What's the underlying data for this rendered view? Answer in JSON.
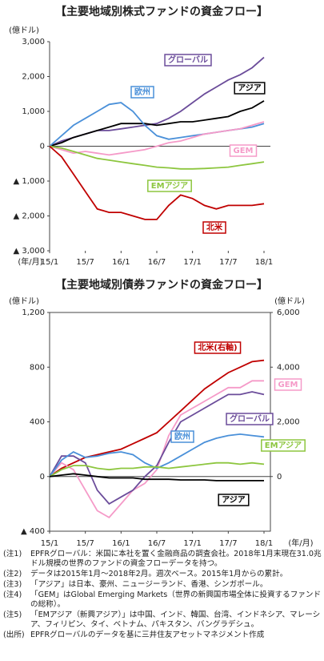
{
  "chart_data": [
    {
      "type": "line",
      "title": "【主要地域別株式ファンドの資金フロー】",
      "ylabel": "(億ドル)",
      "xlabel": "(年/月)",
      "categories": [
        "15/1",
        null,
        null,
        "15/7",
        null,
        null,
        "16/1",
        null,
        null,
        "16/7",
        null,
        null,
        "17/1",
        null,
        null,
        "17/7",
        null,
        null,
        "18/1"
      ],
      "ylim": [
        -3000,
        3000
      ],
      "yticks": [
        {
          "value": 3000,
          "label": "3,000"
        },
        {
          "value": 2000,
          "label": "2,000"
        },
        {
          "value": 1000,
          "label": "1,000"
        },
        0,
        {
          "value": -1000,
          "label": "▲ 1,000"
        },
        {
          "value": -2000,
          "label": "▲ 2,000"
        },
        {
          "value": -3000,
          "label": "▲ 3,000"
        }
      ],
      "grid": false,
      "series": [
        {
          "name": "グローバル",
          "color": "#6b4c9a",
          "values": [
            0,
            150,
            250,
            350,
            450,
            450,
            500,
            550,
            600,
            650,
            800,
            1000,
            1250,
            1500,
            1700,
            1900,
            2050,
            2250,
            2550
          ]
        },
        {
          "name": "アジア",
          "color": "#000000",
          "values": [
            0,
            100,
            250,
            350,
            450,
            550,
            650,
            650,
            650,
            600,
            650,
            700,
            700,
            750,
            800,
            850,
            1000,
            1100,
            1300
          ]
        },
        {
          "name": "欧州",
          "color": "#4a90d9",
          "values": [
            0,
            300,
            600,
            800,
            1000,
            1200,
            1250,
            1000,
            600,
            300,
            200,
            250,
            300,
            350,
            400,
            450,
            500,
            550,
            650
          ]
        },
        {
          "name": "GEM",
          "color": "#f59ac8",
          "values": [
            0,
            -100,
            -200,
            -150,
            -200,
            -250,
            -200,
            -150,
            -100,
            0,
            100,
            150,
            250,
            350,
            400,
            450,
            500,
            600,
            700
          ]
        },
        {
          "name": "EMアジア",
          "color": "#8dc63f",
          "values": [
            0,
            -50,
            -150,
            -250,
            -350,
            -400,
            -450,
            -500,
            -550,
            -600,
            -620,
            -650,
            -650,
            -640,
            -620,
            -600,
            -550,
            -500,
            -450
          ]
        },
        {
          "name": "北米",
          "color": "#c00000",
          "values": [
            0,
            -300,
            -800,
            -1300,
            -1800,
            -1900,
            -1900,
            -2000,
            -2100,
            -2100,
            -1700,
            -1400,
            -1500,
            -1700,
            -1800,
            -1700,
            -1700,
            -1700,
            -1650
          ]
        }
      ]
    },
    {
      "type": "line",
      "title": "【主要地域別債券ファンドの資金フロー】",
      "ylabel": "(億ドル)",
      "y2label": "(億ドル)",
      "xlabel": "(年/月)",
      "categories": [
        "15/1",
        null,
        null,
        "15/7",
        null,
        null,
        "16/1",
        null,
        null,
        "16/7",
        null,
        null,
        "17/1",
        null,
        null,
        "17/7",
        null,
        null,
        "18/1"
      ],
      "ylim": [
        -400,
        1200
      ],
      "yticks": [
        {
          "value": 1200,
          "label": "1,200"
        },
        800,
        400,
        0,
        {
          "value": -400,
          "label": "▲ 400"
        }
      ],
      "y2lim": [
        -2000,
        6000
      ],
      "y2ticks": [
        {
          "value": 6000,
          "label": "6,000"
        },
        {
          "value": 4000,
          "label": "4,000"
        },
        {
          "value": 2000,
          "label": "2,000"
        },
        0
      ],
      "grid": false,
      "series": [
        {
          "name": "北米(右軸)",
          "color": "#c00000",
          "axis": "y2",
          "values": [
            0,
            300,
            500,
            700,
            800,
            900,
            1000,
            1200,
            1400,
            1600,
            2000,
            2400,
            2800,
            3200,
            3500,
            3800,
            4000,
            4200,
            4250
          ]
        },
        {
          "name": "GEM",
          "color": "#f59ac8",
          "values": [
            0,
            100,
            50,
            -100,
            -250,
            -300,
            -200,
            -100,
            -50,
            50,
            300,
            450,
            500,
            550,
            600,
            650,
            650,
            700,
            700
          ]
        },
        {
          "name": "グローバル",
          "color": "#6b4c9a",
          "values": [
            0,
            150,
            150,
            100,
            -100,
            -200,
            -150,
            -100,
            0,
            80,
            250,
            400,
            450,
            500,
            550,
            600,
            600,
            620,
            600
          ]
        },
        {
          "name": "欧州",
          "color": "#4a90d9",
          "values": [
            0,
            120,
            180,
            140,
            150,
            170,
            180,
            160,
            100,
            60,
            100,
            150,
            200,
            250,
            280,
            300,
            310,
            300,
            290
          ]
        },
        {
          "name": "EMアジア",
          "color": "#8dc63f",
          "values": [
            0,
            50,
            80,
            80,
            60,
            50,
            60,
            60,
            70,
            70,
            60,
            70,
            80,
            90,
            100,
            100,
            90,
            100,
            90
          ]
        },
        {
          "name": "アジア",
          "color": "#000000",
          "values": [
            0,
            10,
            20,
            10,
            0,
            -10,
            -10,
            -10,
            -20,
            -20,
            -20,
            -25,
            -25,
            -25,
            -30,
            -30,
            -30,
            -30,
            -30
          ]
        }
      ]
    }
  ],
  "notes": [
    {
      "label": "(注1)",
      "text": "EPFRグローバル：米国に本社を置く金融商品の調査会社。2018年1月末現在31.0兆ドル規模の世界のファンドの資金フローデータを持つ。"
    },
    {
      "label": "(注2)",
      "text": "データは2015年1月～2018年2月。週次ベース。2015年1月からの累計。"
    },
    {
      "label": "(注3)",
      "text": "「アジア」は日本、豪州、ニュージーランド、香港、シンガポール。"
    },
    {
      "label": "(注4)",
      "text": "「GEM」はGlobal Emerging Markets（世界の新興国市場全体に投資するファンドの総称）。"
    },
    {
      "label": "(注5)",
      "text": "「EMアジア（新興アジア）」は中国、インド、韓国、台湾、インドネシア、マレーシア、フィリピン、タイ、ベトナム、パキスタン、バングラデシュ。"
    },
    {
      "label": "(出所)",
      "text": "EPFRグローバルのデータを基に三井住友アセットマネジメント作成"
    }
  ]
}
